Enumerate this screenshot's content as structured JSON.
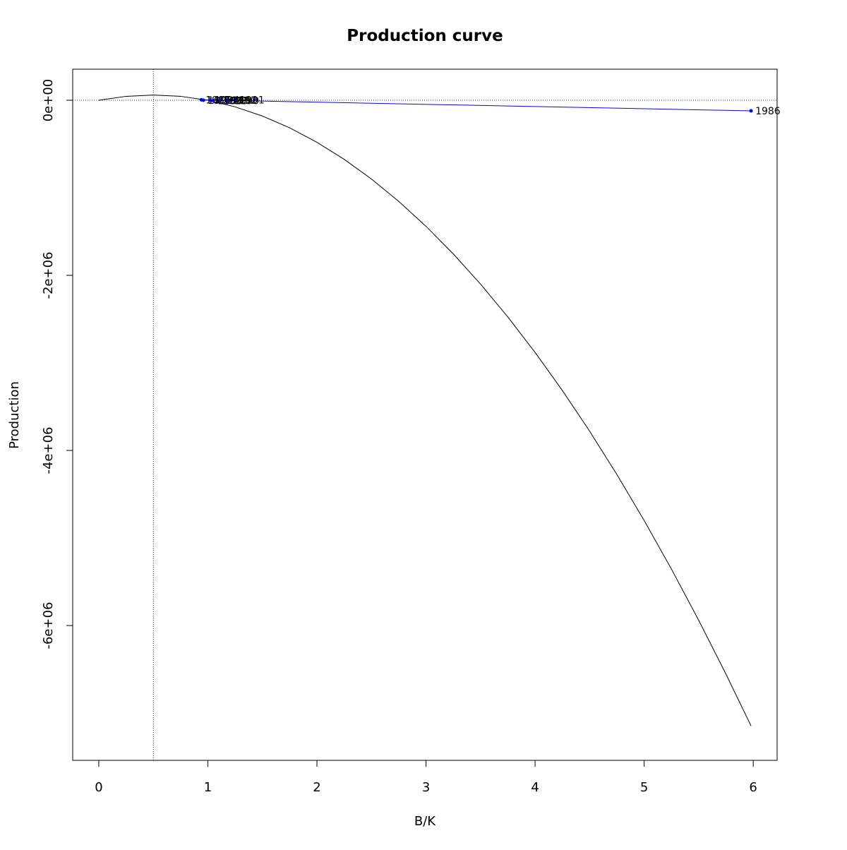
{
  "chart_data": {
    "type": "line",
    "title": "Production curve",
    "x_label": "B/K",
    "y_label": "Production",
    "xlim": [
      -0.239,
      6.219
    ],
    "ylim": [
      -7540000,
      355000
    ],
    "xticks": [
      0,
      1,
      2,
      3,
      4,
      5,
      6
    ],
    "yticks": [
      {
        "value": 0,
        "label": "0e+00"
      },
      {
        "value": -2000000,
        "label": "-2e+06"
      },
      {
        "value": -4000000,
        "label": "-4e+06"
      },
      {
        "value": -6000000,
        "label": "-6e+06"
      }
    ],
    "reference_x": 0.5,
    "reference_y": 0,
    "curve": {
      "color": "#000000",
      "x": [
        0,
        0.25,
        0.5,
        0.75,
        1,
        1.25,
        1.5,
        1.75,
        2,
        2.25,
        2.5,
        2.75,
        3,
        3.25,
        3.5,
        3.75,
        4,
        4.25,
        4.5,
        4.75,
        5,
        5.25,
        5.5,
        5.75,
        5.98
      ],
      "values": [
        0,
        45000,
        60000,
        45000,
        0,
        -75000,
        -180000,
        -315000,
        -480000,
        -675000,
        -900000,
        -1155000,
        -1440000,
        -1755000,
        -2100000,
        -2475000,
        -2880000,
        -3315000,
        -3780000,
        -4275000,
        -4800000,
        -5355000,
        -5940000,
        -6555000,
        -7147000
      ]
    },
    "series": [
      {
        "color": "#0000ff",
        "labels": [
          "1986",
          "1987",
          "1988",
          "1989",
          "1990",
          "1991",
          "1992",
          "1993",
          "1994",
          "1995"
        ],
        "x": [
          5.98,
          0.94,
          1.05,
          1.12,
          1.2,
          1.25,
          1.18,
          1.1,
          1.02,
          0.96
        ],
        "values": [
          -121000,
          5000,
          -3000,
          2000,
          -2000,
          4000,
          1000,
          -5000,
          3000,
          0
        ]
      }
    ]
  }
}
